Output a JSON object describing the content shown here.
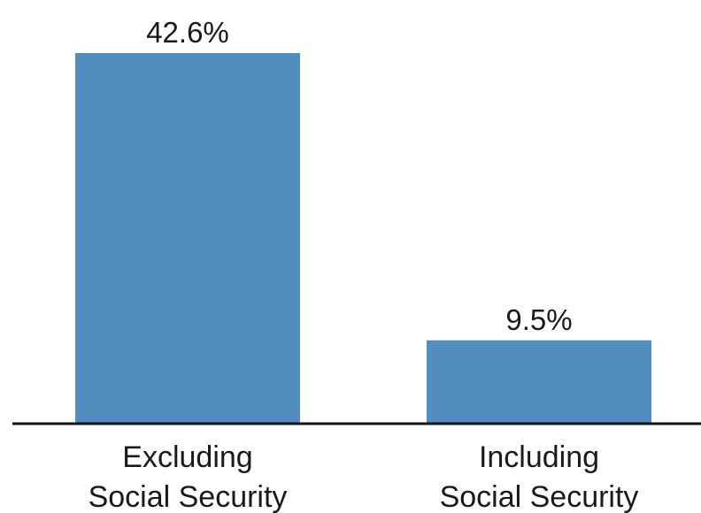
{
  "chart_data": {
    "type": "bar",
    "categories": [
      [
        "Excluding",
        "Social Security"
      ],
      [
        "Including",
        "Social Security"
      ]
    ],
    "values": [
      42.6,
      9.5
    ],
    "value_labels": [
      "42.6%",
      "9.5%"
    ],
    "title": "",
    "xlabel": "",
    "ylabel": "",
    "ylim": [
      0,
      50
    ],
    "grid": false,
    "legend": "none",
    "colors": {
      "bar": "#528dbf",
      "axis": "#111111",
      "text": "#1a1a1a"
    }
  }
}
